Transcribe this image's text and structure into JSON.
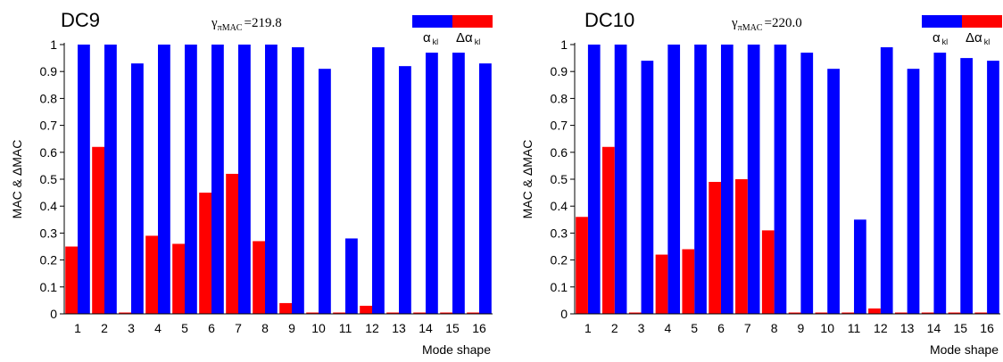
{
  "chart_data": [
    {
      "type": "bar",
      "title": "DC9",
      "annotation": {
        "symbol": "γ",
        "subscript": "πMAC",
        "value_text": "=219.8"
      },
      "xlabel": "Mode shape",
      "ylabel": "MAC & ΔMAC",
      "ylim": [
        0,
        1
      ],
      "yticks": [
        "0",
        "0.1",
        "0.2",
        "0.3",
        "0.4",
        "0.5",
        "0.6",
        "0.7",
        "0.8",
        "0.9",
        "1"
      ],
      "categories": [
        "1",
        "2",
        "3",
        "4",
        "5",
        "6",
        "7",
        "8",
        "9",
        "10",
        "11",
        "12",
        "13",
        "14",
        "15",
        "16"
      ],
      "legend_position": "top-right",
      "series": [
        {
          "name": "α",
          "subscript": "kl",
          "color": "#0000ff",
          "values": [
            1.0,
            1.0,
            0.93,
            1.0,
            1.0,
            1.0,
            1.0,
            1.0,
            0.99,
            0.91,
            0.28,
            0.99,
            0.92,
            0.97,
            0.97,
            0.93
          ]
        },
        {
          "name": "Δα",
          "subscript": "kl",
          "color": "#ff0000",
          "values": [
            0.25,
            0.62,
            0.0,
            0.29,
            0.26,
            0.45,
            0.52,
            0.27,
            0.04,
            0.0,
            0.0,
            0.03,
            0.0,
            0.0,
            0.0,
            0.0
          ]
        }
      ]
    },
    {
      "type": "bar",
      "title": "DC10",
      "annotation": {
        "symbol": "γ",
        "subscript": "πMAC",
        "value_text": "=220.0"
      },
      "xlabel": "Mode shape",
      "ylabel": "MAC & ΔMAC",
      "ylim": [
        0,
        1
      ],
      "yticks": [
        "0",
        "0.1",
        "0.2",
        "0.3",
        "0.4",
        "0.5",
        "0.6",
        "0.7",
        "0.8",
        "0.9",
        "1"
      ],
      "categories": [
        "1",
        "2",
        "3",
        "4",
        "5",
        "6",
        "7",
        "8",
        "9",
        "10",
        "11",
        "12",
        "13",
        "14",
        "15",
        "16"
      ],
      "legend_position": "top-right",
      "series": [
        {
          "name": "α",
          "subscript": "kl",
          "color": "#0000ff",
          "values": [
            1.0,
            1.0,
            0.94,
            1.0,
            1.0,
            1.0,
            1.0,
            1.0,
            0.97,
            0.91,
            0.35,
            0.99,
            0.91,
            0.97,
            0.95,
            0.94
          ]
        },
        {
          "name": "Δα",
          "subscript": "kl",
          "color": "#ff0000",
          "values": [
            0.36,
            0.62,
            0.0,
            0.22,
            0.24,
            0.49,
            0.5,
            0.31,
            0.0,
            0.0,
            0.0,
            0.02,
            0.0,
            0.0,
            0.0,
            0.0
          ]
        }
      ]
    }
  ]
}
